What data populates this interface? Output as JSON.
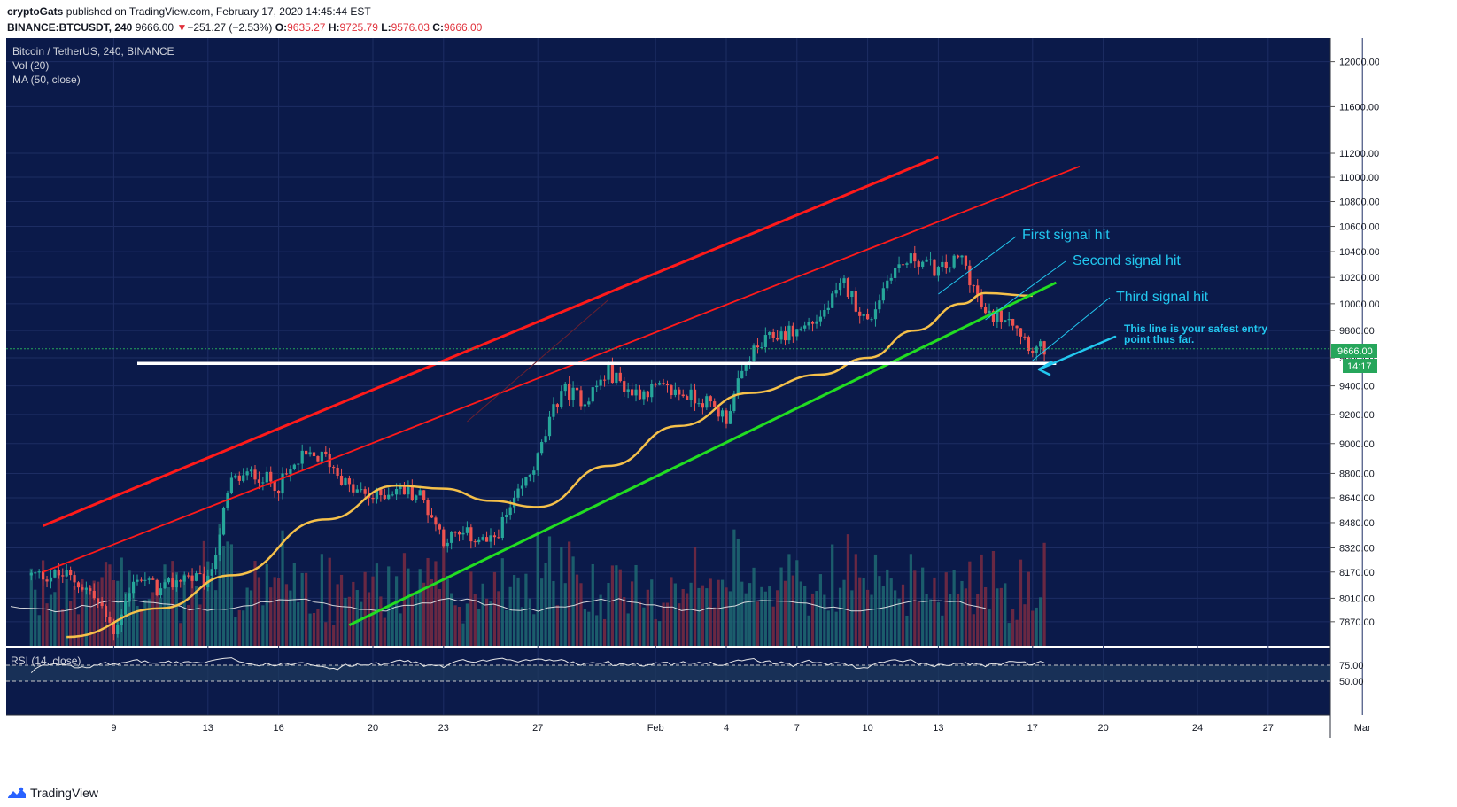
{
  "header": {
    "author": "cryptoGats",
    "published": "published on TradingView.com, February 17, 2020 14:45:44 EST",
    "symbol": "BINANCE:BTCUSDT, 240",
    "last": "9666.00",
    "change_arrow": "▼",
    "change": "−251.27 (−2.53%)",
    "o_label": "O:",
    "o": "9635.27",
    "h_label": "H:",
    "h": "9725.79",
    "l_label": "L:",
    "l": "9576.03",
    "c_label": "C:",
    "c": "9666.00"
  },
  "legend": {
    "title": "Bitcoin / TetherUS, 240, BINANCE",
    "vol": "Vol (20)",
    "ma": "MA (50, close)",
    "rsi": "RSI (14, close)"
  },
  "annotations": {
    "first": "First signal hit",
    "second": "Second signal hit",
    "third": "Third signal hit",
    "note_line1": "This line is your safest entry",
    "note_line2": "point thus far."
  },
  "price_badge": {
    "value": "9666.00",
    "countdown": "14:17"
  },
  "footer": {
    "brand": "TradingView"
  },
  "colors": {
    "background": "#0b1a4a",
    "up": "#26a69a",
    "down": "#ef5350",
    "channel": "#ff1a1a",
    "support": "#22dd22",
    "ma": "#f5c04a",
    "annotation": "#22c8f0",
    "price_badge": "#26a65b"
  },
  "chart_data": {
    "type": "candlestick",
    "title": "Bitcoin / TetherUS, 240, BINANCE",
    "y_axis": {
      "ticks": [
        "12000.00",
        "11600.00",
        "11200.00",
        "11000.00",
        "10800.00",
        "10600.00",
        "10400.00",
        "10200.00",
        "10000.00",
        "9800.00",
        "9600.00",
        "9400.00",
        "9200.00",
        "9000.00",
        "8800.00",
        "8640.00",
        "8480.00",
        "8320.00",
        "8170.00",
        "8010.00",
        "7870.00"
      ],
      "scale": "log",
      "ylim": [
        7770,
        12150
      ]
    },
    "x_axis": {
      "ticks": [
        "9",
        "13",
        "16",
        "20",
        "23",
        "27",
        "Feb",
        "4",
        "7",
        "10",
        "13",
        "17",
        "20",
        "24",
        "27",
        "Mar"
      ]
    },
    "rsi_axis": {
      "ticks": [
        "75.00",
        "50.00"
      ]
    },
    "close_series": [
      {
        "date": "2020-01-07",
        "close": 8150
      },
      {
        "date": "2020-01-08",
        "close": 8050
      },
      {
        "date": "2020-01-09",
        "close": 7820
      },
      {
        "date": "2020-01-10",
        "close": 8150
      },
      {
        "date": "2020-01-11",
        "close": 8050
      },
      {
        "date": "2020-01-12",
        "close": 8150
      },
      {
        "date": "2020-01-13",
        "close": 8100
      },
      {
        "date": "2020-01-14",
        "close": 8750
      },
      {
        "date": "2020-01-15",
        "close": 8800
      },
      {
        "date": "2020-01-16",
        "close": 8720
      },
      {
        "date": "2020-01-17",
        "close": 8900
      },
      {
        "date": "2020-01-18",
        "close": 8910
      },
      {
        "date": "2020-01-19",
        "close": 8700
      },
      {
        "date": "2020-01-20",
        "close": 8640
      },
      {
        "date": "2020-01-21",
        "close": 8700
      },
      {
        "date": "2020-01-22",
        "close": 8660
      },
      {
        "date": "2020-01-23",
        "close": 8380
      },
      {
        "date": "2020-01-24",
        "close": 8400
      },
      {
        "date": "2020-01-25",
        "close": 8350
      },
      {
        "date": "2020-01-26",
        "close": 8600
      },
      {
        "date": "2020-01-27",
        "close": 8900
      },
      {
        "date": "2020-01-28",
        "close": 9380
      },
      {
        "date": "2020-01-29",
        "close": 9300
      },
      {
        "date": "2020-01-30",
        "close": 9500
      },
      {
        "date": "2020-01-31",
        "close": 9350
      },
      {
        "date": "2020-02-01",
        "close": 9380
      },
      {
        "date": "2020-02-02",
        "close": 9350
      },
      {
        "date": "2020-02-03",
        "close": 9300
      },
      {
        "date": "2020-02-04",
        "close": 9180
      },
      {
        "date": "2020-02-05",
        "close": 9620
      },
      {
        "date": "2020-02-06",
        "close": 9760
      },
      {
        "date": "2020-02-07",
        "close": 9800
      },
      {
        "date": "2020-02-08",
        "close": 9900
      },
      {
        "date": "2020-02-09",
        "close": 10150
      },
      {
        "date": "2020-02-10",
        "close": 9850
      },
      {
        "date": "2020-02-11",
        "close": 10250
      },
      {
        "date": "2020-02-12",
        "close": 10350
      },
      {
        "date": "2020-02-13",
        "close": 10250
      },
      {
        "date": "2020-02-14",
        "close": 10350
      },
      {
        "date": "2020-02-15",
        "close": 9900
      },
      {
        "date": "2020-02-16",
        "close": 9920
      },
      {
        "date": "2020-02-17",
        "close": 9666
      }
    ],
    "ma50_series": [
      {
        "date": "2020-01-07",
        "value": 7780
      },
      {
        "date": "2020-01-11",
        "value": 7950
      },
      {
        "date": "2020-01-14",
        "value": 8150
      },
      {
        "date": "2020-01-18",
        "value": 8500
      },
      {
        "date": "2020-01-21",
        "value": 8720
      },
      {
        "date": "2020-01-23",
        "value": 8700
      },
      {
        "date": "2020-01-25",
        "value": 8620
      },
      {
        "date": "2020-01-27",
        "value": 8580
      },
      {
        "date": "2020-01-30",
        "value": 8850
      },
      {
        "date": "2020-02-02",
        "value": 9120
      },
      {
        "date": "2020-02-05",
        "value": 9350
      },
      {
        "date": "2020-02-08",
        "value": 9480
      },
      {
        "date": "2020-02-10",
        "value": 9600
      },
      {
        "date": "2020-02-12",
        "value": 9800
      },
      {
        "date": "2020-02-14",
        "value": 10000
      },
      {
        "date": "2020-02-15",
        "value": 10080
      },
      {
        "date": "2020-02-17",
        "value": 10060
      }
    ],
    "drawn_lines": {
      "support_horizontal": 9560,
      "outer_channel": [
        {
          "date": "2020-01-06",
          "price": 8460
        },
        {
          "date": "2020-02-13",
          "price": 11170
        }
      ],
      "inner_channel": [
        {
          "date": "2020-01-06",
          "price": 8170
        },
        {
          "date": "2020-02-19",
          "price": 11090
        }
      ],
      "green_trendline": [
        {
          "date": "2020-01-19",
          "price": 7850
        },
        {
          "date": "2020-02-18",
          "price": 10160
        }
      ]
    },
    "last_price": 9666
  }
}
